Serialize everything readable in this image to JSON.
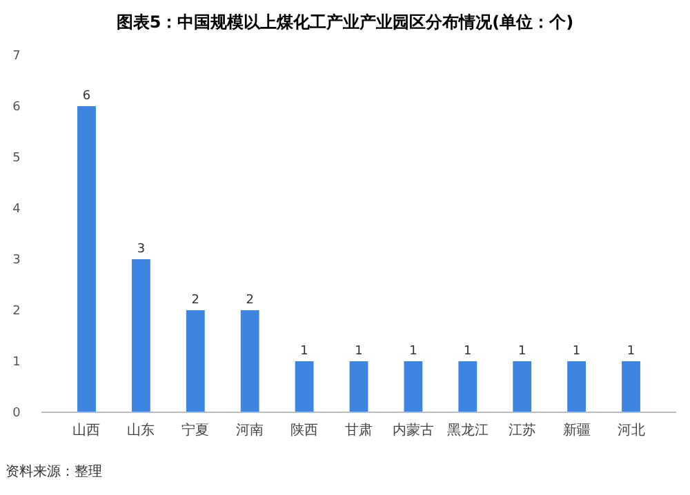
{
  "chart_data": {
    "type": "bar",
    "title": "图表5：中国规模以上煤化工产业产业园区分布情况(单位：个)",
    "categories": [
      "山西",
      "山东",
      "宁夏",
      "河南",
      "陕西",
      "甘肃",
      "内蒙古",
      "黑龙江",
      "江苏",
      "新疆",
      "河北"
    ],
    "values": [
      6,
      3,
      2,
      2,
      1,
      1,
      1,
      1,
      1,
      1,
      1
    ],
    "color": "#3d85e0",
    "data_labels": true,
    "ylim": [
      0,
      7
    ],
    "yticks": [
      0,
      1,
      2,
      3,
      4,
      5,
      6,
      7
    ],
    "grid": false,
    "annotations": [
      "资料来源：整理"
    ]
  }
}
